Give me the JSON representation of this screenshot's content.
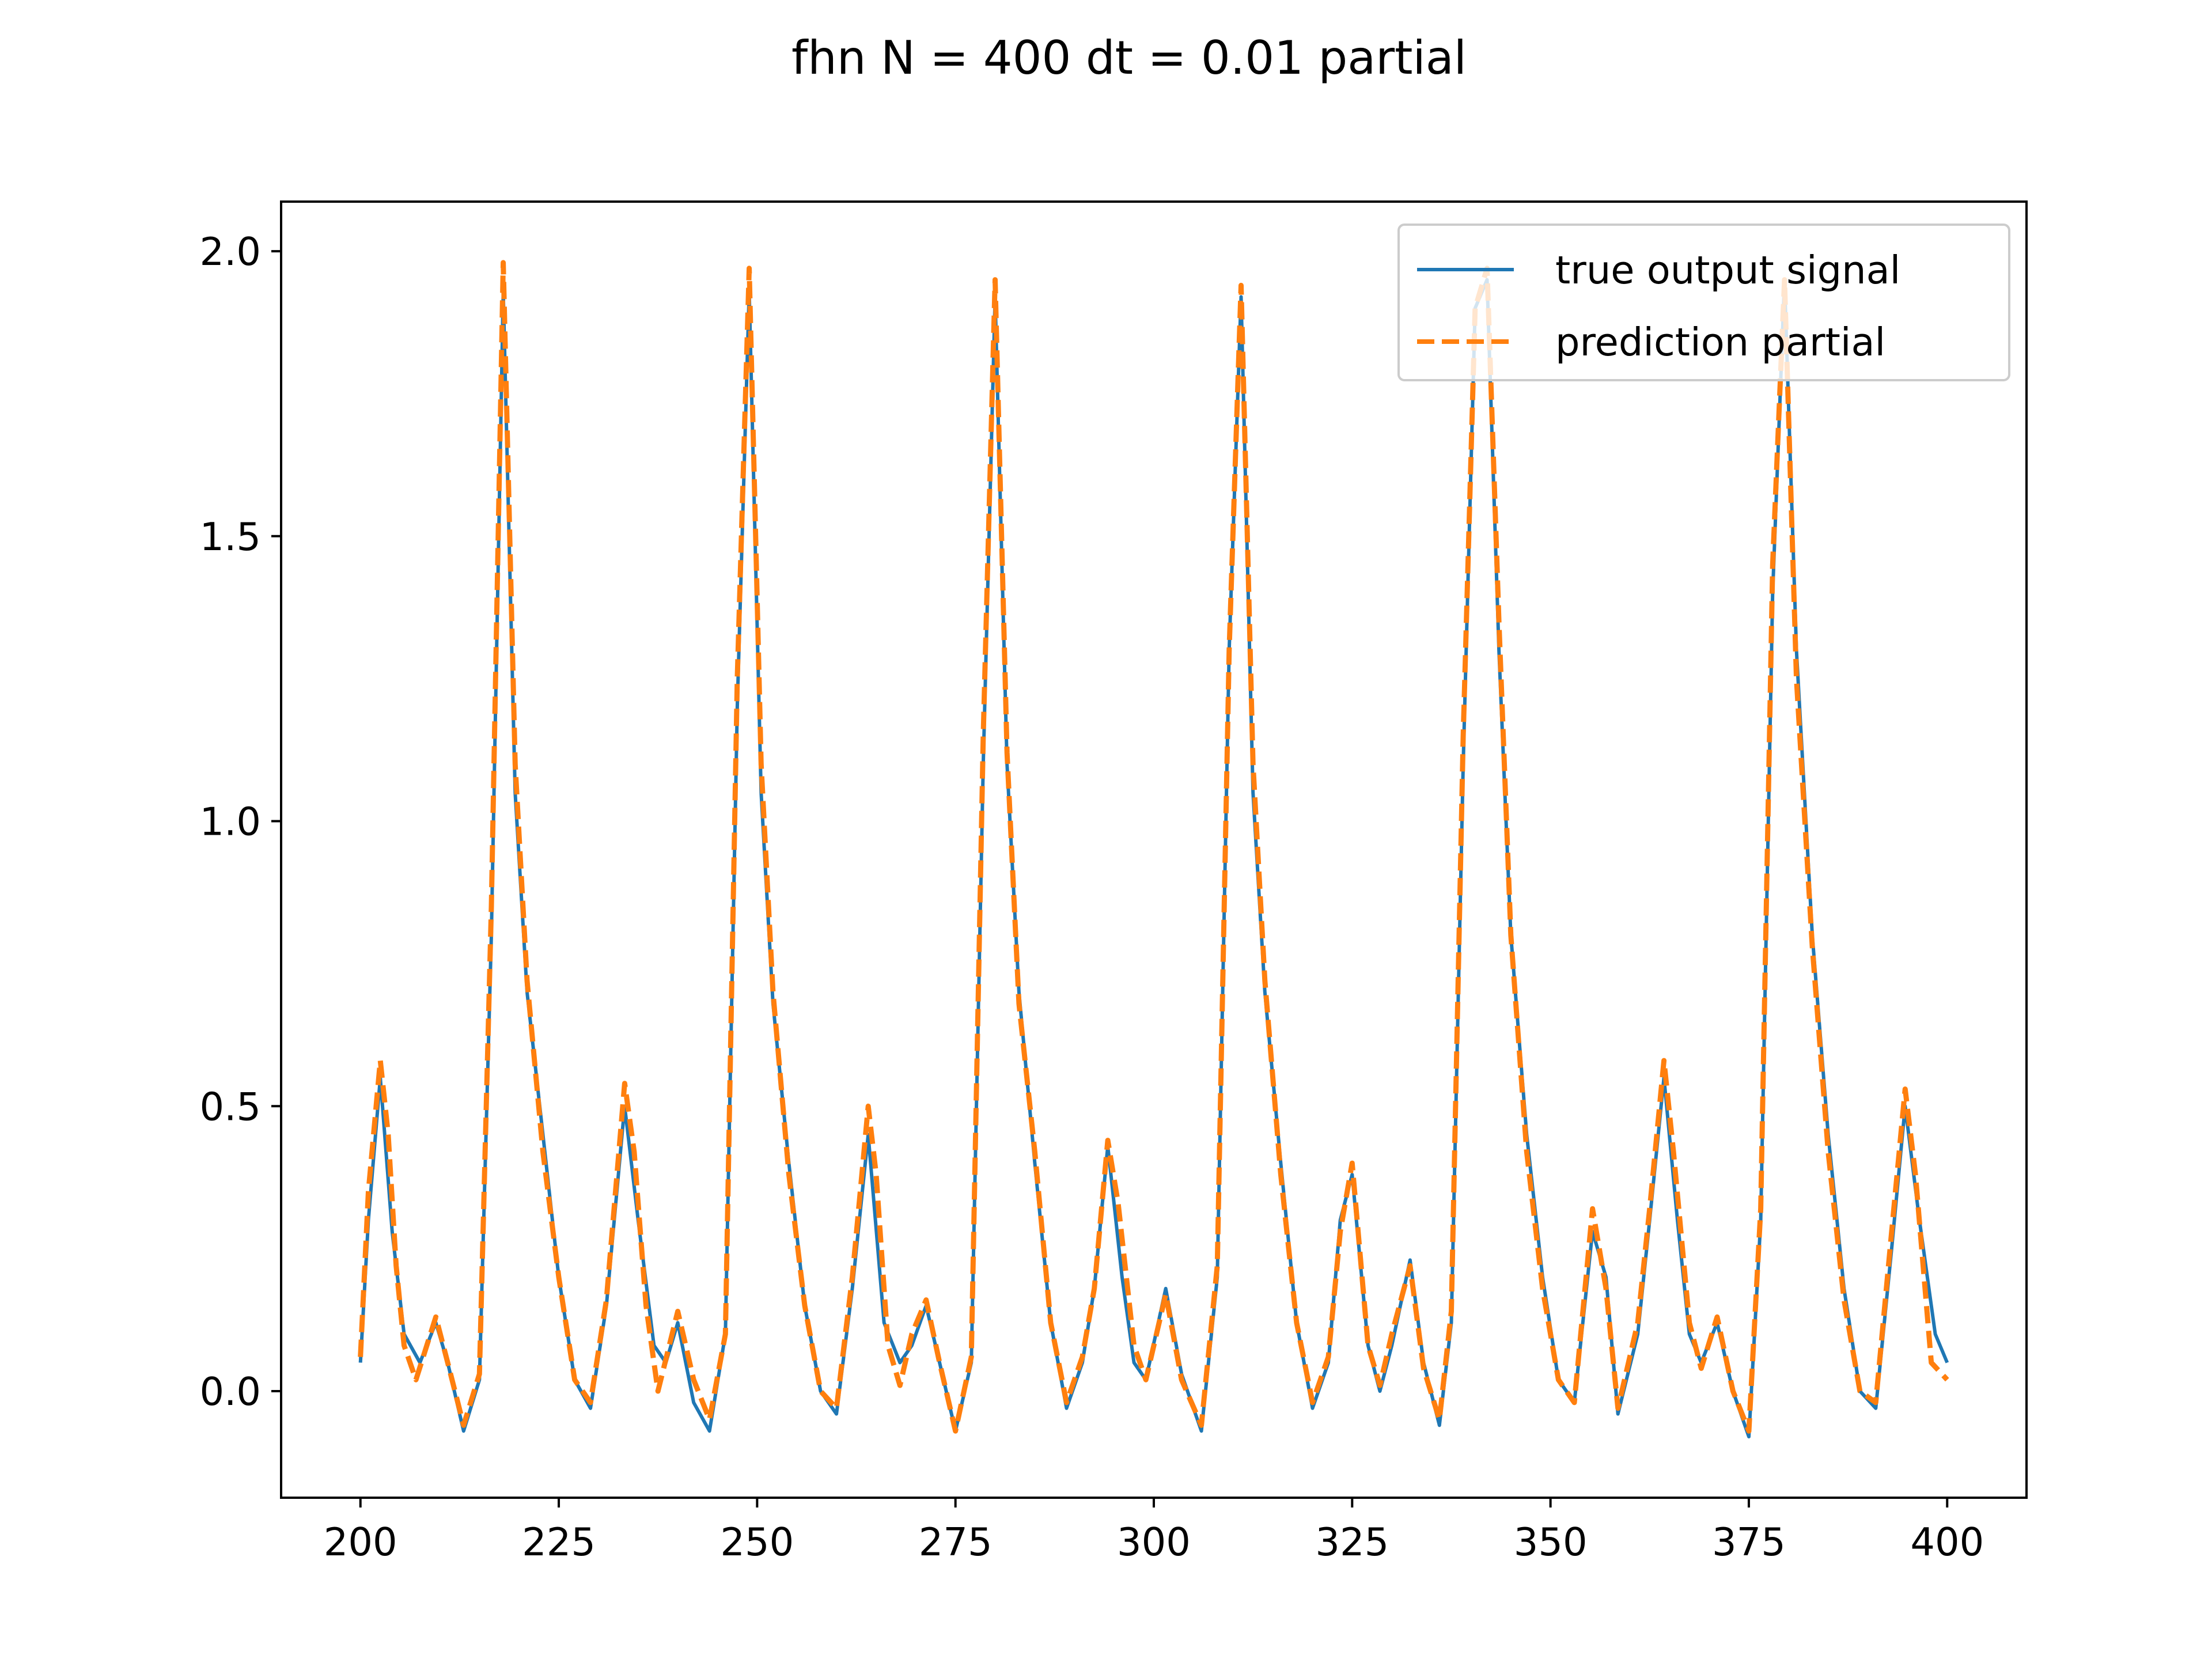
{
  "chart_data": {
    "type": "line",
    "title": "fhn N = 400 dt = 0.01 partial",
    "xlabel": "",
    "ylabel": "",
    "xlim": [
      190,
      410
    ],
    "ylim": [
      -0.187,
      2.087
    ],
    "x_ticks": [
      "200",
      "225",
      "250",
      "275",
      "300",
      "325",
      "350",
      "375",
      "400"
    ],
    "y_ticks": [
      "0.0",
      "0.5",
      "1.0",
      "1.5",
      "2.0"
    ],
    "grid": false,
    "legend_position": "top-right",
    "series": [
      {
        "name": "true output signal",
        "color": "#1f77b4",
        "style": "solid",
        "x": [
          200,
          201,
          202.5,
          204,
          205.5,
          207.5,
          209.5,
          211,
          213,
          215,
          216.5,
          218,
          219.5,
          221,
          223,
          225,
          227,
          229,
          231,
          233.3,
          235,
          237,
          238.5,
          240,
          242,
          244,
          246,
          247.5,
          249,
          250.5,
          252,
          254,
          256,
          258,
          260,
          262,
          264,
          266,
          268,
          269.5,
          271.3,
          273,
          275,
          277,
          278.5,
          280,
          281.5,
          283,
          285,
          287,
          289,
          291,
          292.5,
          294.2,
          296,
          297.5,
          299,
          301.5,
          303.5,
          306,
          308,
          309.5,
          311,
          312.5,
          314,
          316,
          318,
          320,
          322,
          323.5,
          325,
          327,
          328.5,
          330,
          332.3,
          334,
          336,
          337.5,
          339,
          340.5,
          342,
          343.5,
          345,
          347,
          349,
          351,
          353,
          355.3,
          357,
          358.5,
          361,
          362.5,
          364.3,
          366,
          367.5,
          369,
          371,
          373,
          375,
          376.5,
          378,
          379.5,
          381,
          383,
          385,
          387,
          389,
          391,
          393,
          394.7,
          396.5,
          398.5,
          400
        ],
        "values": [
          0.05,
          0.3,
          0.55,
          0.28,
          0.1,
          0.05,
          0.12,
          0.05,
          -0.07,
          0.02,
          0.8,
          1.93,
          1.05,
          0.7,
          0.45,
          0.2,
          0.02,
          -0.03,
          0.15,
          0.5,
          0.3,
          0.08,
          0.05,
          0.12,
          -0.02,
          -0.07,
          0.1,
          1.2,
          1.93,
          1.05,
          0.68,
          0.4,
          0.15,
          0.0,
          -0.04,
          0.18,
          0.45,
          0.12,
          0.05,
          0.08,
          0.15,
          0.05,
          -0.07,
          0.05,
          1.1,
          1.92,
          1.1,
          0.7,
          0.4,
          0.12,
          -0.03,
          0.05,
          0.18,
          0.43,
          0.2,
          0.05,
          0.02,
          0.18,
          0.03,
          -0.07,
          0.2,
          1.3,
          1.92,
          1.05,
          0.7,
          0.4,
          0.12,
          -0.03,
          0.05,
          0.3,
          0.38,
          0.08,
          0.0,
          0.08,
          0.23,
          0.05,
          -0.06,
          0.12,
          1.1,
          1.9,
          1.95,
          1.3,
          0.8,
          0.45,
          0.2,
          0.02,
          -0.02,
          0.28,
          0.2,
          -0.04,
          0.1,
          0.3,
          0.55,
          0.3,
          0.1,
          0.05,
          0.12,
          0.0,
          -0.08,
          0.3,
          1.4,
          1.95,
          1.3,
          0.8,
          0.45,
          0.18,
          0.0,
          -0.03,
          0.25,
          0.5,
          0.3,
          0.1,
          0.05
        ]
      },
      {
        "name": "prediction partial",
        "color": "#ff7f0e",
        "style": "dashed",
        "x": [
          200,
          201,
          202.5,
          203.5,
          204.5,
          205.5,
          207,
          209.5,
          211,
          213,
          215,
          216.5,
          218,
          219.5,
          221,
          223,
          225,
          227,
          229,
          231,
          233.3,
          234.5,
          236,
          237.5,
          240,
          242,
          244,
          246,
          247.5,
          249,
          250.5,
          252,
          254,
          256,
          258,
          260,
          262,
          264,
          265,
          266.5,
          268,
          269.5,
          271.3,
          273,
          275,
          277,
          278.5,
          280,
          281.5,
          283,
          285,
          287,
          289,
          291,
          292.5,
          294.2,
          295.5,
          297.5,
          299,
          301.5,
          303.5,
          306,
          308,
          309.5,
          311,
          312.5,
          314,
          316,
          318,
          320,
          322,
          323.5,
          325,
          327,
          328.5,
          330,
          332.3,
          334,
          336,
          337.5,
          339,
          340.5,
          342,
          343.5,
          345,
          347,
          349,
          351,
          353,
          355.3,
          357,
          358.5,
          361,
          362.5,
          364.3,
          365.5,
          367.5,
          369,
          371,
          373,
          375,
          376.5,
          378,
          379.5,
          381,
          383,
          385,
          387,
          389,
          391,
          393,
          394.7,
          396,
          398,
          400
        ],
        "values": [
          0.06,
          0.35,
          0.58,
          0.45,
          0.22,
          0.08,
          0.02,
          0.13,
          0.05,
          -0.06,
          0.03,
          0.85,
          1.98,
          1.1,
          0.72,
          0.42,
          0.2,
          0.02,
          -0.02,
          0.16,
          0.54,
          0.42,
          0.15,
          0.0,
          0.14,
          0.02,
          -0.05,
          0.1,
          1.25,
          1.97,
          1.1,
          0.7,
          0.38,
          0.15,
          0.0,
          -0.03,
          0.2,
          0.5,
          0.38,
          0.08,
          0.01,
          0.1,
          0.16,
          0.05,
          -0.07,
          0.06,
          1.15,
          1.95,
          1.12,
          0.68,
          0.42,
          0.12,
          -0.02,
          0.06,
          0.18,
          0.44,
          0.33,
          0.08,
          0.02,
          0.17,
          0.02,
          -0.06,
          0.22,
          1.3,
          1.94,
          1.1,
          0.72,
          0.38,
          0.12,
          -0.02,
          0.06,
          0.28,
          0.4,
          0.08,
          0.01,
          0.1,
          0.22,
          0.04,
          -0.05,
          0.14,
          1.15,
          1.9,
          1.97,
          1.35,
          0.8,
          0.42,
          0.18,
          0.02,
          -0.02,
          0.32,
          0.18,
          -0.03,
          0.12,
          0.32,
          0.58,
          0.42,
          0.12,
          0.04,
          0.13,
          0.0,
          -0.07,
          0.32,
          1.45,
          1.95,
          1.25,
          0.78,
          0.42,
          0.16,
          0.0,
          -0.02,
          0.28,
          0.53,
          0.38,
          0.05,
          0.02
        ]
      }
    ]
  }
}
